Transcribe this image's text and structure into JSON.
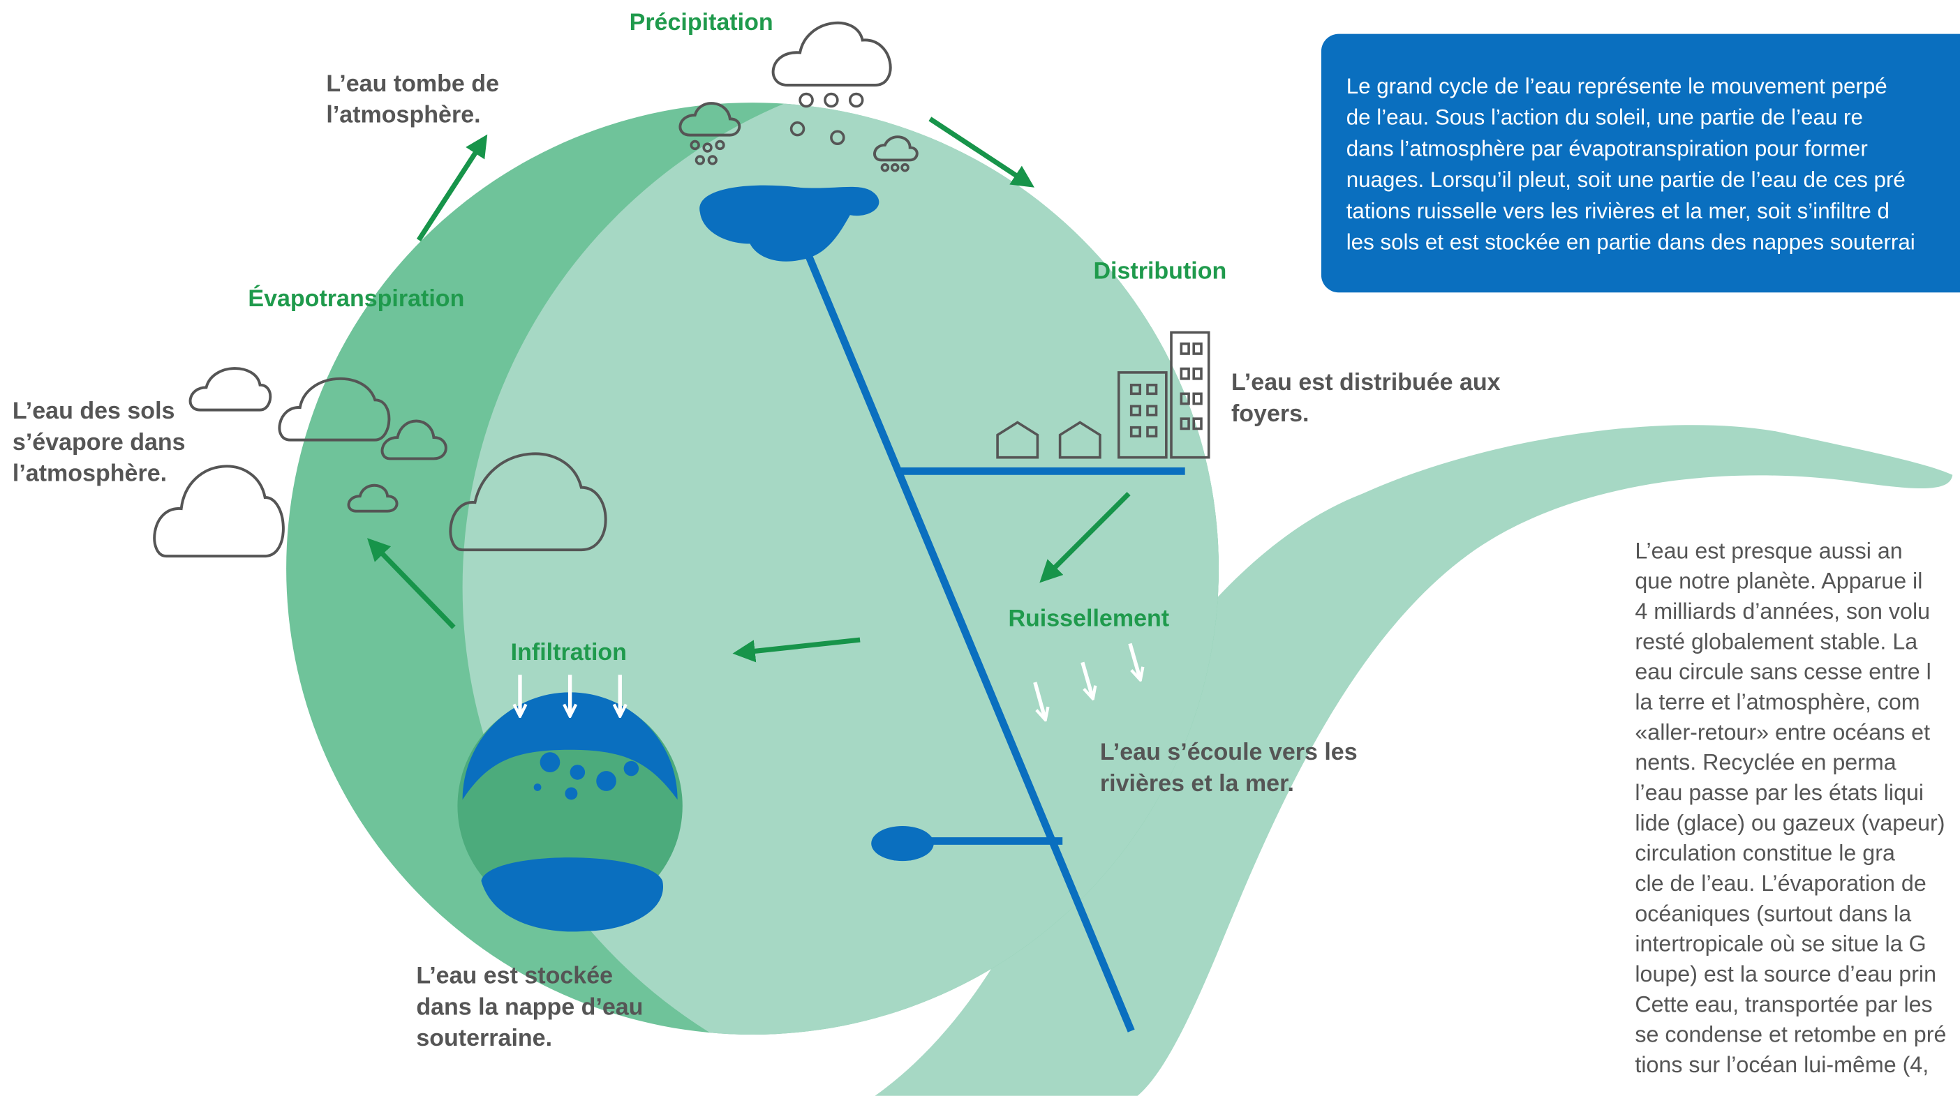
{
  "steps": [
    {
      "title": "Précipitation",
      "description": [
        "L’eau tombe de",
        "l’atmosphère."
      ]
    },
    {
      "title": "Évapotranspiration",
      "description": [
        "L’eau des sols",
        "s’évapore dans",
        "l’atmosphère."
      ]
    },
    {
      "title": "Distribution",
      "description": [
        "L’eau est distribuée aux",
        "foyers."
      ]
    },
    {
      "title": "Ruissellement",
      "description": [
        "L’eau s’écoule vers les",
        "rivières et  la mer."
      ]
    },
    {
      "title": "Infiltration",
      "description": [
        "L’eau est stockée",
        "dans la nappe d’eau",
        "souterraine."
      ]
    }
  ],
  "intro_box": [
    "Le grand cycle de l’eau représente le mouvement perpé",
    "de l’eau. Sous l’action du soleil, une partie de l’eau re",
    "dans l’atmosphère par évapotranspiration pour former",
    "nuages. Lorsqu’il pleut, soit une partie de l’eau de ces pré",
    "tations ruisselle vers les rivières et la mer, soit s’infiltre d",
    "les sols et est stockée en partie dans des nappes souterrai"
  ],
  "paragraph": [
    "L’eau est presque aussi an",
    "que notre planète. Apparue il",
    "4 milliards d’années, son volu",
    "resté globalement stable. La",
    "eau circule sans cesse entre l",
    "la terre et l’atmosphère, com",
    "«aller-retour» entre océans et",
    "nents. Recyclée en perma",
    "l’eau passe par les états liqui",
    "lide (glace) ou gazeux (vapeur)",
    "circulation constitue le gra",
    "cle de l’eau. L’évaporation de",
    "océaniques (surtout dans la",
    "intertropicale où se situe la G",
    "loupe) est la source d’eau prin",
    "Cette eau, transportée par les",
    "se condense et retombe en pré",
    "tions sur l’océan lui-même (4,"
  ]
}
